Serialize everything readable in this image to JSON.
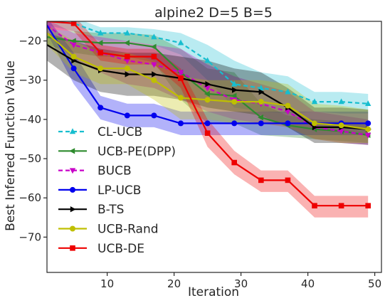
{
  "chart_data": {
    "type": "line",
    "title": "alpine2 D=5 B=5",
    "xlabel": "Iteration",
    "ylabel": "Best Inferred Function Value",
    "xlim": [
      1,
      51
    ],
    "ylim": [
      -79,
      -15
    ],
    "xticks": [
      10,
      20,
      30,
      40,
      50
    ],
    "yticks": [
      -20,
      -30,
      -40,
      -50,
      -60,
      -70
    ],
    "grid": false,
    "legend_position": "lower-left",
    "x": [
      1,
      5,
      9,
      13,
      17,
      21,
      25,
      29,
      33,
      37,
      41,
      45,
      49
    ],
    "series": [
      {
        "name": "CL-UCB",
        "color": "#17becf",
        "marker": "triangle-up",
        "dash": "6,4",
        "values": [
          -15,
          -15.5,
          -18,
          -18,
          -19,
          -20.5,
          -25,
          -31,
          -32,
          -33,
          -35.5,
          -35.5,
          -36
        ],
        "band": [
          [
            -14,
            -16
          ],
          [
            -14,
            -17.5
          ],
          [
            -16.5,
            -20
          ],
          [
            -16.5,
            -20
          ],
          [
            -17,
            -21
          ],
          [
            -18,
            -23.5
          ],
          [
            -21,
            -30
          ],
          [
            -25,
            -37
          ],
          [
            -28,
            -38
          ],
          [
            -29,
            -38.5
          ],
          [
            -33,
            -38
          ],
          [
            -33,
            -38.5
          ],
          [
            -33.5,
            -38.5
          ]
        ]
      },
      {
        "name": "UCB-PE(DPP)",
        "color": "#2e8b2e",
        "marker": "triangle-left",
        "dash": "",
        "values": [
          -19,
          -20,
          -20.5,
          -20.5,
          -21.5,
          -28,
          -33.5,
          -34,
          -39.5,
          -41.5,
          -42.5,
          -43,
          -44
        ],
        "band": [
          [
            -17,
            -21
          ],
          [
            -17.5,
            -23
          ],
          [
            -18,
            -24
          ],
          [
            -18,
            -24
          ],
          [
            -18.5,
            -25.5
          ],
          [
            -22,
            -35
          ],
          [
            -27,
            -41
          ],
          [
            -28,
            -41
          ],
          [
            -36,
            -44
          ],
          [
            -39,
            -44.5
          ],
          [
            -40,
            -45
          ],
          [
            -40.5,
            -45.5
          ],
          [
            -41,
            -46
          ]
        ]
      },
      {
        "name": "BUCB",
        "color": "#c800c8",
        "marker": "triangle-down",
        "dash": "6,4",
        "values": [
          -16,
          -21,
          -23,
          -25,
          -26,
          -28,
          -32,
          -35,
          -36,
          -38,
          -42,
          -43,
          -44
        ],
        "band": [
          [
            -14.5,
            -18
          ],
          [
            -18,
            -25
          ],
          [
            -19,
            -28
          ],
          [
            -20,
            -31
          ],
          [
            -21,
            -32
          ],
          [
            -22,
            -35
          ],
          [
            -26,
            -38
          ],
          [
            -29,
            -40
          ],
          [
            -31,
            -41
          ],
          [
            -33,
            -42
          ],
          [
            -38,
            -45
          ],
          [
            -39,
            -46
          ],
          [
            -40,
            -46.5
          ]
        ]
      },
      {
        "name": "LP-UCB",
        "color": "#0000ee",
        "marker": "circle",
        "dash": "",
        "values": [
          -16,
          -27,
          -37,
          -39,
          -39,
          -41,
          -41,
          -41,
          -41,
          -41,
          -41,
          -41,
          -41
        ],
        "band": [
          [
            -14,
            -18
          ],
          [
            -23,
            -31
          ],
          [
            -34,
            -40
          ],
          [
            -36,
            -42
          ],
          [
            -36,
            -42
          ],
          [
            -38,
            -44
          ],
          [
            -38,
            -44
          ],
          [
            -38,
            -44
          ],
          [
            -38,
            -44
          ],
          [
            -38,
            -44
          ],
          [
            -38,
            -44
          ],
          [
            -38,
            -44
          ],
          [
            -38,
            -44
          ]
        ]
      },
      {
        "name": "B-TS",
        "color": "#000000",
        "marker": "triangle-right",
        "dash": "",
        "values": [
          -21,
          -25,
          -27.5,
          -28.5,
          -28.5,
          -29.5,
          -31,
          -32.5,
          -33,
          -37,
          -42,
          -42,
          -42.5
        ],
        "band": [
          [
            -18,
            -25
          ],
          [
            -20,
            -30
          ],
          [
            -22,
            -33
          ],
          [
            -23,
            -34
          ],
          [
            -23,
            -34
          ],
          [
            -24,
            -35
          ],
          [
            -25,
            -37
          ],
          [
            -27,
            -38
          ],
          [
            -28,
            -39
          ],
          [
            -32,
            -42
          ],
          [
            -37,
            -46
          ],
          [
            -37,
            -46
          ],
          [
            -37.5,
            -46.5
          ]
        ]
      },
      {
        "name": "UCB-Rand",
        "color": "#bfbf00",
        "marker": "circle",
        "dash": "",
        "values": [
          -18,
          -24,
          -27,
          -27,
          -30,
          -34.5,
          -35,
          -35.5,
          -35.5,
          -36.5,
          -41,
          -41.5,
          -42.5
        ],
        "band": [
          [
            -16,
            -21
          ],
          [
            -20,
            -28
          ],
          [
            -23,
            -31
          ],
          [
            -23,
            -31
          ],
          [
            -25,
            -35
          ],
          [
            -29,
            -40
          ],
          [
            -30,
            -40
          ],
          [
            -30,
            -41
          ],
          [
            -30,
            -41
          ],
          [
            -31,
            -42
          ],
          [
            -36,
            -45
          ],
          [
            -36.5,
            -46
          ],
          [
            -37.5,
            -46
          ]
        ]
      },
      {
        "name": "UCB-DE",
        "color": "#ee0000",
        "marker": "square",
        "dash": "",
        "values": [
          -15,
          -15.5,
          -23,
          -24,
          -24,
          -29.5,
          -43.5,
          -51,
          -55.5,
          -55.5,
          -62,
          -62,
          -62
        ],
        "band": [
          [
            -13,
            -17
          ],
          [
            -13.5,
            -17.5
          ],
          [
            -21,
            -25
          ],
          [
            -22,
            -26
          ],
          [
            -22,
            -26
          ],
          [
            -27,
            -32
          ],
          [
            -40,
            -47
          ],
          [
            -48,
            -54
          ],
          [
            -53,
            -58.5
          ],
          [
            -53,
            -58.5
          ],
          [
            -59.5,
            -65
          ],
          [
            -59.5,
            -65
          ],
          [
            -59.5,
            -65
          ]
        ]
      }
    ]
  }
}
